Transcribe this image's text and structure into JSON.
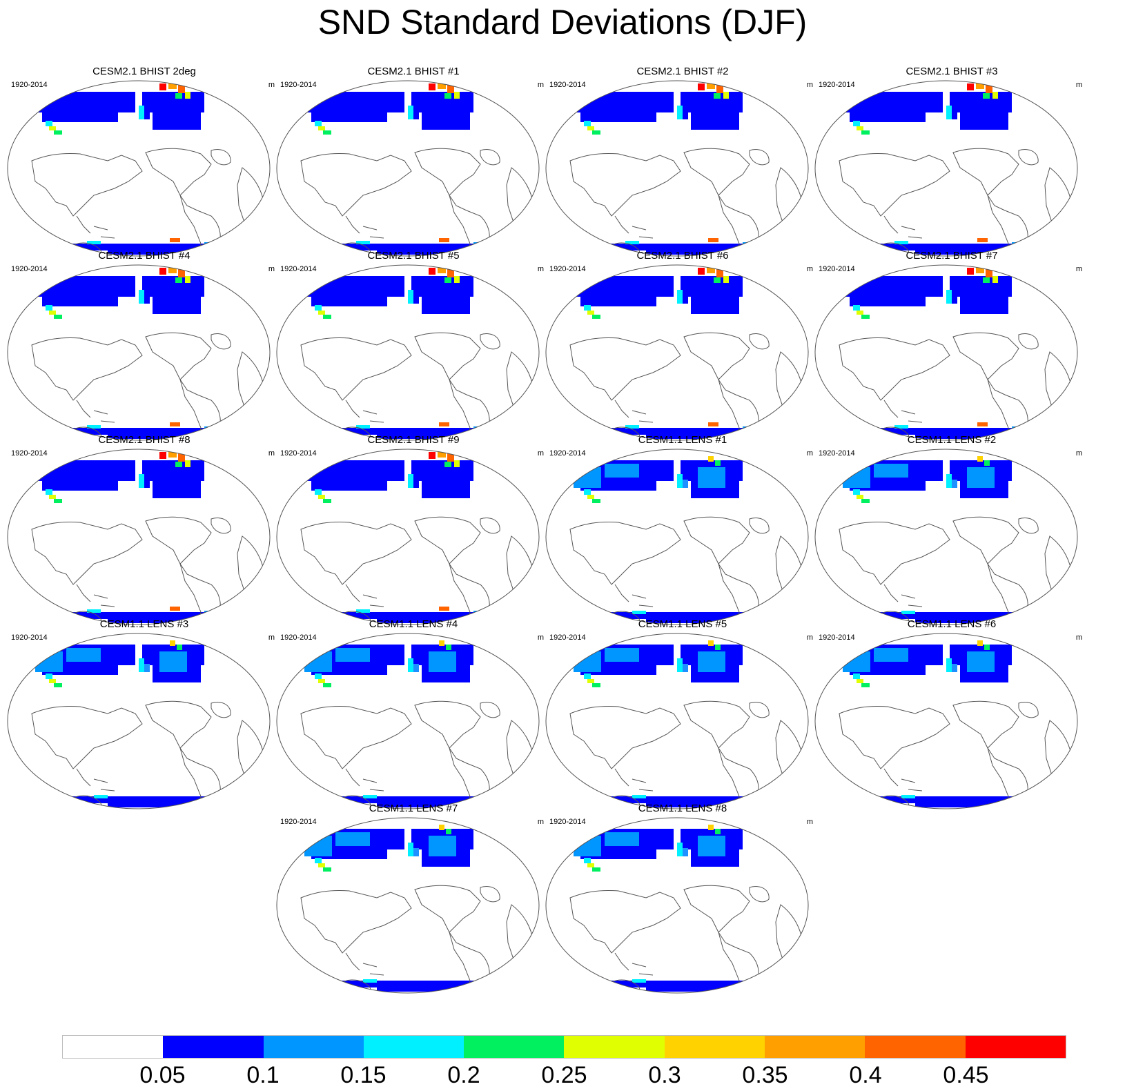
{
  "title": "SND Standard Deviations (DJF)",
  "panels": [
    {
      "title": "CESM2.1 BHIST 2deg",
      "period": "1920-2014",
      "units": "m",
      "model": "cesm2"
    },
    {
      "title": "CESM2.1 BHIST #1",
      "period": "1920-2014",
      "units": "m",
      "model": "cesm2"
    },
    {
      "title": "CESM2.1 BHIST #2",
      "period": "1920-2014",
      "units": "m",
      "model": "cesm2"
    },
    {
      "title": "CESM2.1 BHIST #3",
      "period": "1920-2014",
      "units": "m",
      "model": "cesm2"
    },
    {
      "title": "CESM2.1 BHIST #4",
      "period": "1920-2014",
      "units": "m",
      "model": "cesm2"
    },
    {
      "title": "CESM2.1 BHIST #5",
      "period": "1920-2014",
      "units": "m",
      "model": "cesm2"
    },
    {
      "title": "CESM2.1 BHIST #6",
      "period": "1920-2014",
      "units": "m",
      "model": "cesm2"
    },
    {
      "title": "CESM2.1 BHIST #7",
      "period": "1920-2014",
      "units": "m",
      "model": "cesm2"
    },
    {
      "title": "CESM2.1 BHIST #8",
      "period": "1920-2014",
      "units": "m",
      "model": "cesm2"
    },
    {
      "title": "CESM2.1 BHIST #9",
      "period": "1920-2014",
      "units": "m",
      "model": "cesm2"
    },
    {
      "title": "CESM1.1 LENS #1",
      "period": "1920-2014",
      "units": "m",
      "model": "cesm1"
    },
    {
      "title": "CESM1.1 LENS #2",
      "period": "1920-2014",
      "units": "m",
      "model": "cesm1"
    },
    {
      "title": "CESM1.1 LENS #3",
      "period": "1920-2014",
      "units": "m",
      "model": "cesm1"
    },
    {
      "title": "CESM1.1 LENS #4",
      "period": "1920-2014",
      "units": "m",
      "model": "cesm1"
    },
    {
      "title": "CESM1.1 LENS #5",
      "period": "1920-2014",
      "units": "m",
      "model": "cesm1"
    },
    {
      "title": "CESM1.1 LENS #6",
      "period": "1920-2014",
      "units": "m",
      "model": "cesm1"
    },
    {
      "title": "CESM1.1 LENS #7",
      "period": "1920-2014",
      "units": "m",
      "model": "cesm1"
    },
    {
      "title": "CESM1.1 LENS #8",
      "period": "1920-2014",
      "units": "m",
      "model": "cesm1"
    }
  ],
  "colorbar": {
    "colors": [
      "#ffffff",
      "#0000ff",
      "#0096ff",
      "#00f0ff",
      "#00f060",
      "#e0ff00",
      "#ffd200",
      "#ffa000",
      "#ff6400",
      "#ff0000"
    ],
    "labels": [
      "0.05",
      "0.1",
      "0.15",
      "0.2",
      "0.25",
      "0.3",
      "0.35",
      "0.4",
      "0.45"
    ]
  },
  "legend_colors": {
    "cesm2_mid": "#0096ff",
    "cesm1_mid": "#1e90ff",
    "outline": "#555555"
  }
}
